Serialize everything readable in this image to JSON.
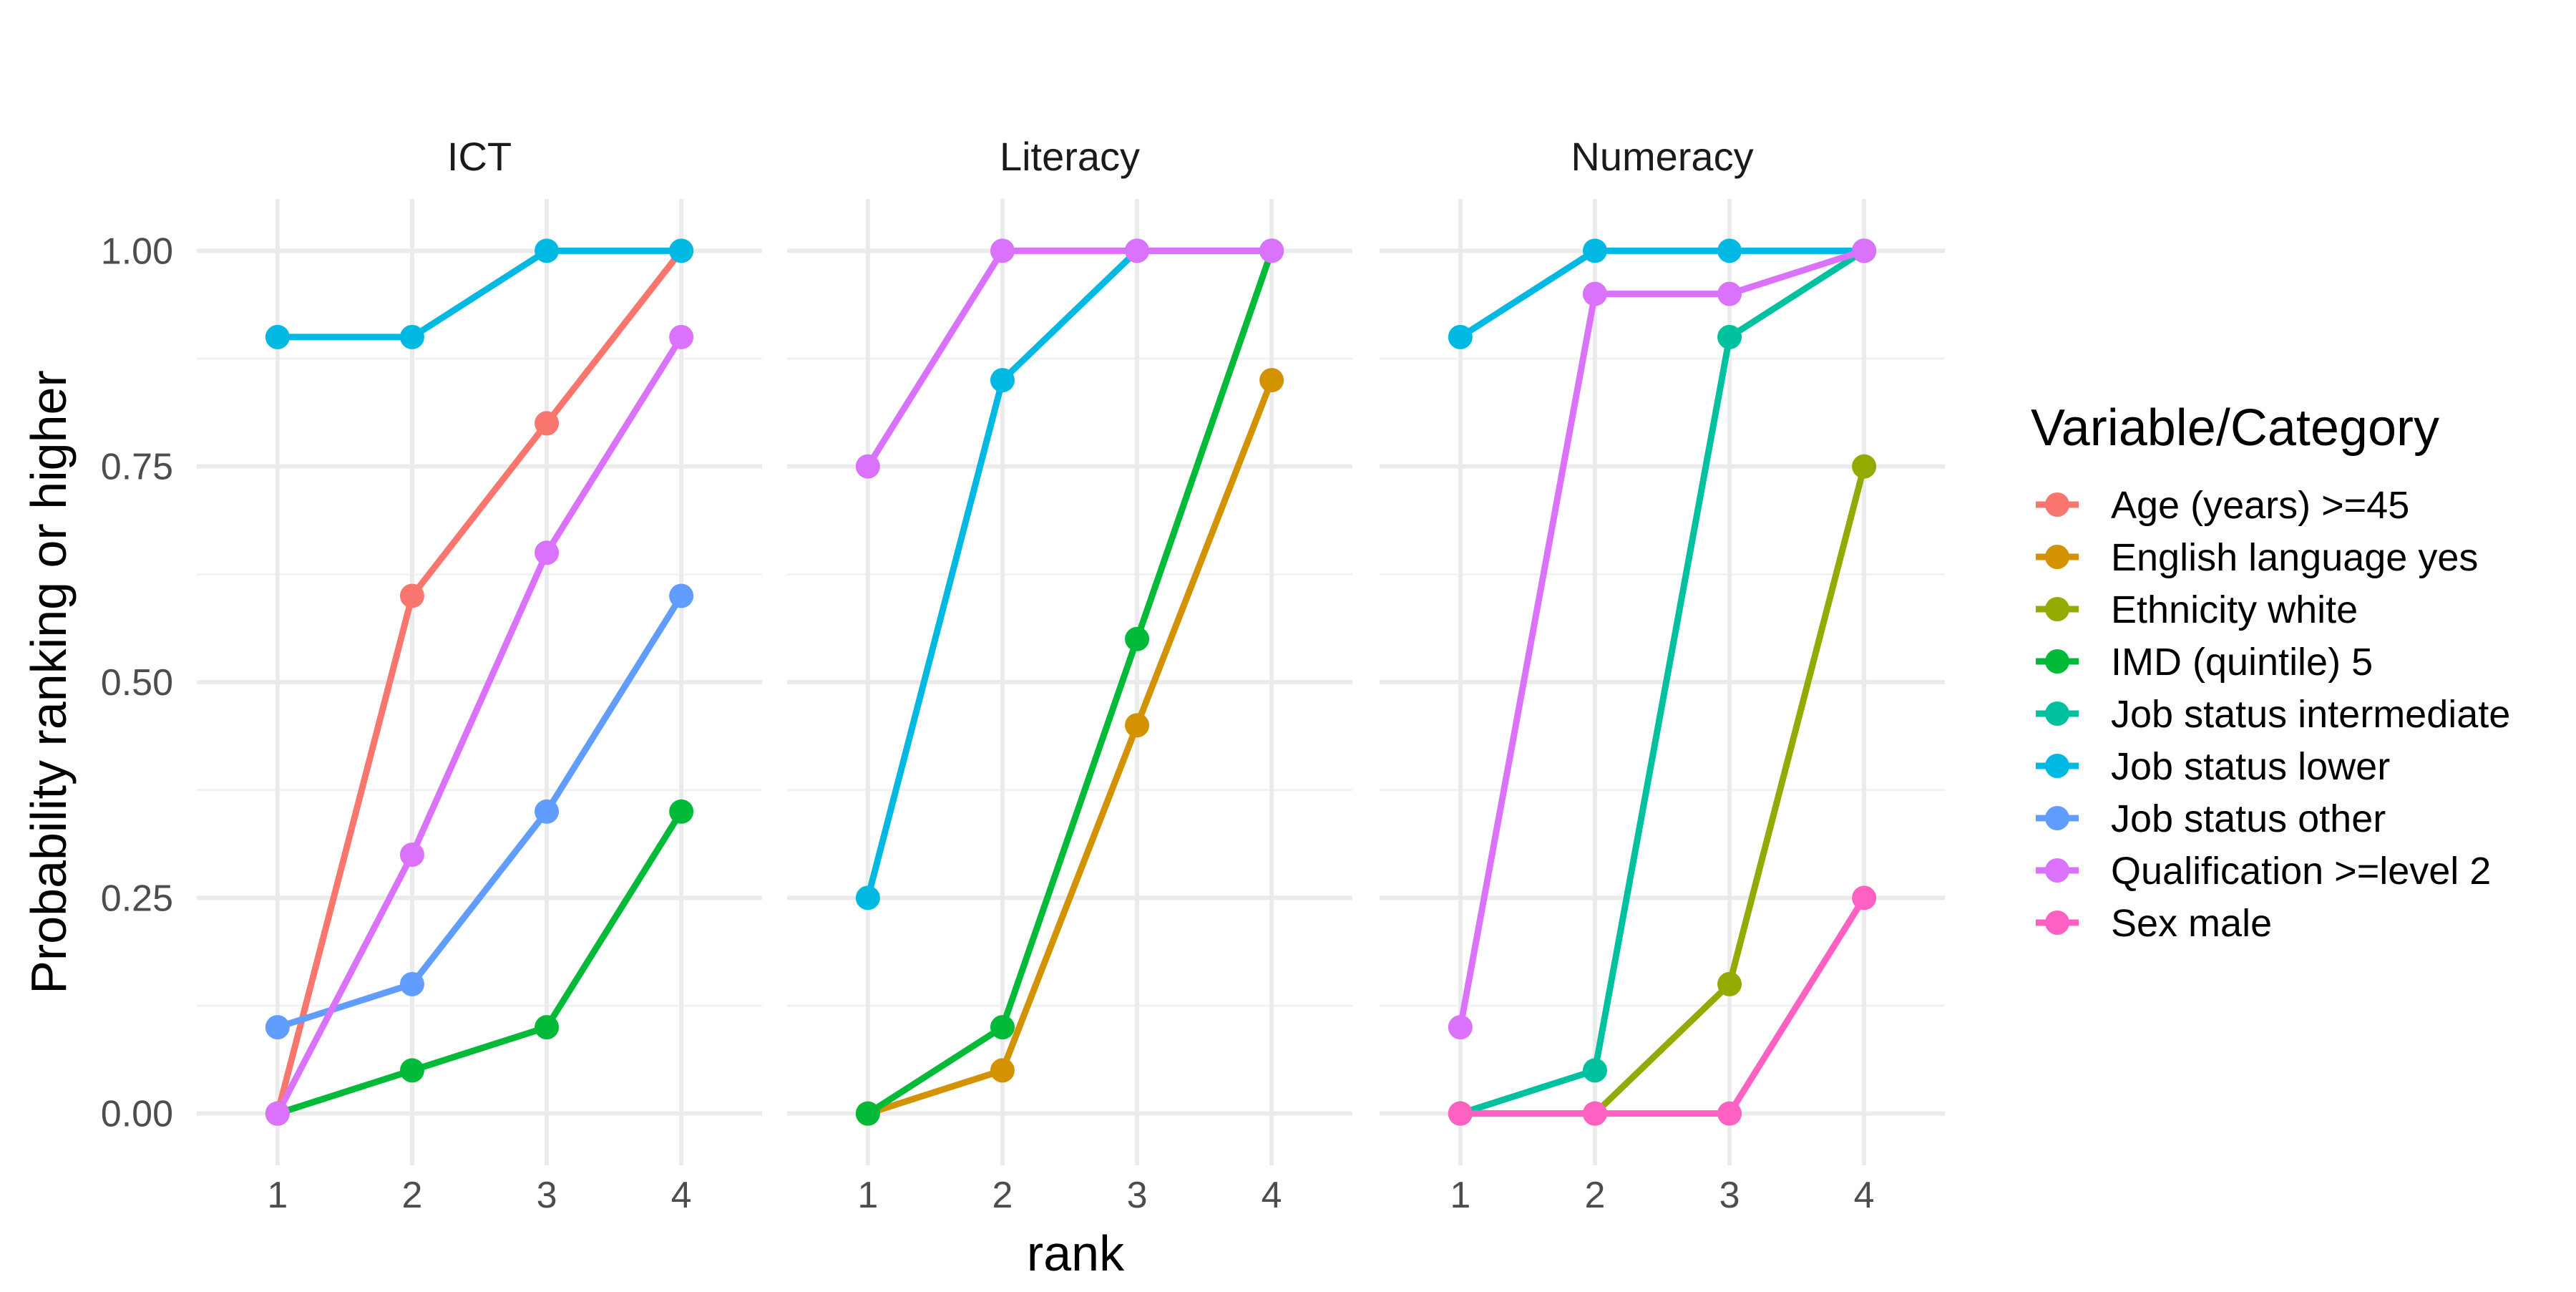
{
  "chart_data": {
    "type": "line",
    "xlabel": "rank",
    "ylabel": "Probability ranking or higher",
    "x": [
      1,
      2,
      3,
      4
    ],
    "xlim": [
      0.4,
      4.6
    ],
    "ylim": [
      -0.06,
      1.06
    ],
    "x_ticks": [
      "1",
      "2",
      "3",
      "4"
    ],
    "y_ticks": [
      {
        "value": 0.0,
        "label": "0.00"
      },
      {
        "value": 0.25,
        "label": "0.25"
      },
      {
        "value": 0.5,
        "label": "0.50"
      },
      {
        "value": 0.75,
        "label": "0.75"
      },
      {
        "value": 1.0,
        "label": "1.00"
      }
    ],
    "grid": true,
    "legend": {
      "title": "Variable/Category",
      "position": "right",
      "entries": [
        {
          "name": "Age (years) >=45",
          "color": "#F8766D"
        },
        {
          "name": "English language yes",
          "color": "#D39200"
        },
        {
          "name": "Ethnicity white",
          "color": "#93AA00"
        },
        {
          "name": "IMD (quintile) 5",
          "color": "#00BA38"
        },
        {
          "name": "Job status intermediate",
          "color": "#00C19F"
        },
        {
          "name": "Job status lower",
          "color": "#00B9E3"
        },
        {
          "name": "Job status other",
          "color": "#619CFF"
        },
        {
          "name": "Qualification >=level 2",
          "color": "#DB72FB"
        },
        {
          "name": "Sex male",
          "color": "#FF61C3"
        }
      ]
    },
    "panels": [
      {
        "title": "ICT",
        "series": [
          {
            "name": "Age (years) >=45",
            "values": [
              0.0,
              0.6,
              0.8,
              1.0
            ]
          },
          {
            "name": "IMD (quintile) 5",
            "values": [
              0.0,
              0.05,
              0.1,
              0.35
            ]
          },
          {
            "name": "Job status lower",
            "values": [
              0.9,
              0.9,
              1.0,
              1.0
            ]
          },
          {
            "name": "Job status other",
            "values": [
              0.1,
              0.15,
              0.35,
              0.6
            ]
          },
          {
            "name": "Qualification >=level 2",
            "values": [
              0.0,
              0.3,
              0.65,
              0.9
            ]
          }
        ]
      },
      {
        "title": "Literacy",
        "series": [
          {
            "name": "English language yes",
            "values": [
              0.0,
              0.05,
              0.45,
              0.85
            ]
          },
          {
            "name": "IMD (quintile) 5",
            "values": [
              0.0,
              0.1,
              0.55,
              1.0
            ]
          },
          {
            "name": "Job status lower",
            "values": [
              0.25,
              0.85,
              1.0,
              1.0
            ]
          },
          {
            "name": "Qualification >=level 2",
            "values": [
              0.75,
              1.0,
              1.0,
              1.0
            ]
          }
        ]
      },
      {
        "title": "Numeracy",
        "series": [
          {
            "name": "Ethnicity white",
            "values": [
              0.0,
              0.0,
              0.15,
              0.75
            ]
          },
          {
            "name": "Job status intermediate",
            "values": [
              0.0,
              0.05,
              0.9,
              1.0
            ]
          },
          {
            "name": "Job status lower",
            "values": [
              0.9,
              1.0,
              1.0,
              1.0
            ]
          },
          {
            "name": "Qualification >=level 2",
            "values": [
              0.1,
              0.95,
              0.95,
              1.0
            ]
          },
          {
            "name": "Sex male",
            "values": [
              0.0,
              0.0,
              0.0,
              0.25
            ]
          }
        ]
      }
    ]
  }
}
